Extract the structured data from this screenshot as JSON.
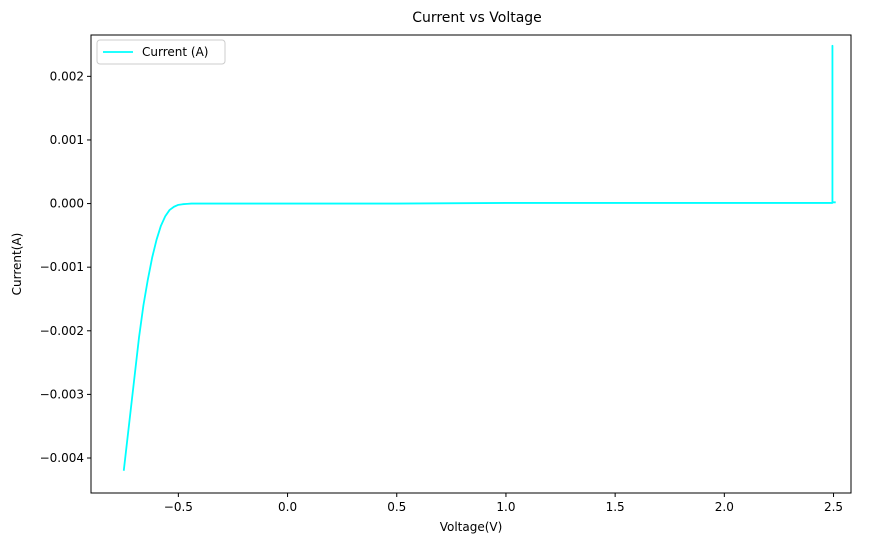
{
  "chart_data": {
    "type": "line",
    "title": "Current vs Voltage",
    "xlabel": "Voltage(V)",
    "ylabel": "Current(A)",
    "xlim": [
      -0.9,
      2.58
    ],
    "ylim": [
      -0.00455,
      0.00265
    ],
    "xticks": [
      -0.5,
      0.0,
      0.5,
      1.0,
      1.5,
      2.0,
      2.5
    ],
    "xtick_labels": [
      "−0.5",
      "0.0",
      "0.5",
      "1.0",
      "1.5",
      "2.0",
      "2.5"
    ],
    "yticks": [
      -0.004,
      -0.003,
      -0.002,
      -0.001,
      0.0,
      0.001,
      0.002
    ],
    "ytick_labels": [
      "−0.004",
      "−0.003",
      "−0.002",
      "−0.001",
      "0.000",
      "0.001",
      "0.002"
    ],
    "grid": false,
    "legend": "top-left",
    "series": [
      {
        "name": "Current (A)",
        "color": "#00FFFF",
        "x": [
          -0.75,
          -0.74,
          -0.72,
          -0.7,
          -0.68,
          -0.66,
          -0.64,
          -0.62,
          -0.6,
          -0.58,
          -0.56,
          -0.54,
          -0.52,
          -0.5,
          -0.48,
          -0.46,
          -0.44,
          -0.4,
          -0.3,
          0.0,
          0.5,
          1.0,
          1.5,
          2.0,
          2.3,
          2.49,
          2.495,
          2.495,
          2.495,
          2.5,
          2.51
        ],
        "y": [
          -0.0042,
          -0.0039,
          -0.0033,
          -0.0027,
          -0.0021,
          -0.0016,
          -0.0012,
          -0.00085,
          -0.00057,
          -0.00035,
          -0.0002,
          -0.0001,
          -5e-05,
          -2e-05,
          -1e-05,
          -5e-06,
          0.0,
          0.0,
          0.0,
          0.0,
          0.0,
          1e-05,
          1e-05,
          1e-05,
          1e-05,
          1e-05,
          1e-05,
          0.00248,
          2e-05,
          2e-05,
          2e-05
        ]
      }
    ]
  }
}
